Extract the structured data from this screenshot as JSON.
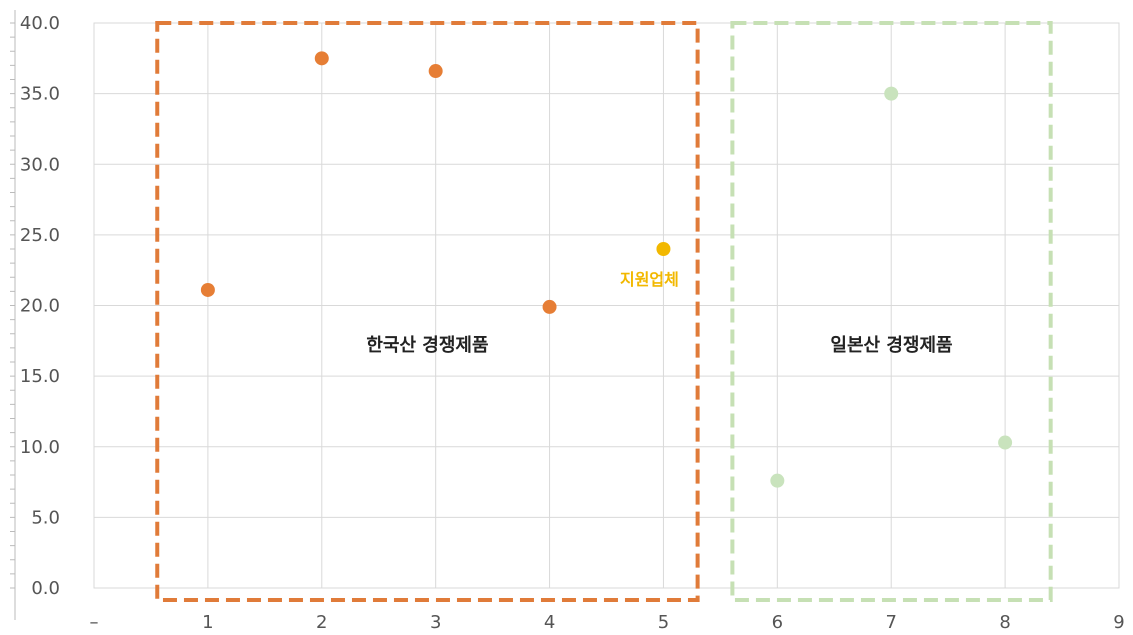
{
  "chart_data": {
    "type": "scatter",
    "xlim": [
      0,
      9
    ],
    "ylim": [
      0,
      40
    ],
    "x_ticks": [
      "–",
      "1",
      "2",
      "3",
      "4",
      "5",
      "6",
      "7",
      "8",
      "9"
    ],
    "y_ticks": [
      "0.0",
      "5.0",
      "10.0",
      "15.0",
      "20.0",
      "25.0",
      "30.0",
      "35.0",
      "40.0"
    ],
    "grid": true,
    "points": [
      {
        "x": 1,
        "y": 21.1,
        "group": "korean"
      },
      {
        "x": 2,
        "y": 37.5,
        "group": "korean"
      },
      {
        "x": 3,
        "y": 36.6,
        "group": "korean"
      },
      {
        "x": 4,
        "y": 19.9,
        "group": "korean"
      },
      {
        "x": 5,
        "y": 24.0,
        "group": "applicant",
        "label": "지원업체"
      },
      {
        "x": 6,
        "y": 7.6,
        "group": "japanese"
      },
      {
        "x": 7,
        "y": 35.0,
        "group": "japanese"
      },
      {
        "x": 8,
        "y": 10.3,
        "group": "japanese"
      }
    ],
    "groups": [
      {
        "key": "korean",
        "label": "한국산 경쟁제품",
        "x_range": [
          0.45,
          5.3
        ],
        "color": "#e07b39"
      },
      {
        "key": "japanese",
        "label": "일본산 경쟁제품",
        "x_range": [
          5.5,
          8.4
        ],
        "color": "#c6e0b4"
      }
    ],
    "colors": {
      "korean": "#e67e35",
      "applicant": "#f2b800",
      "japanese": "#c9e3bd"
    }
  }
}
